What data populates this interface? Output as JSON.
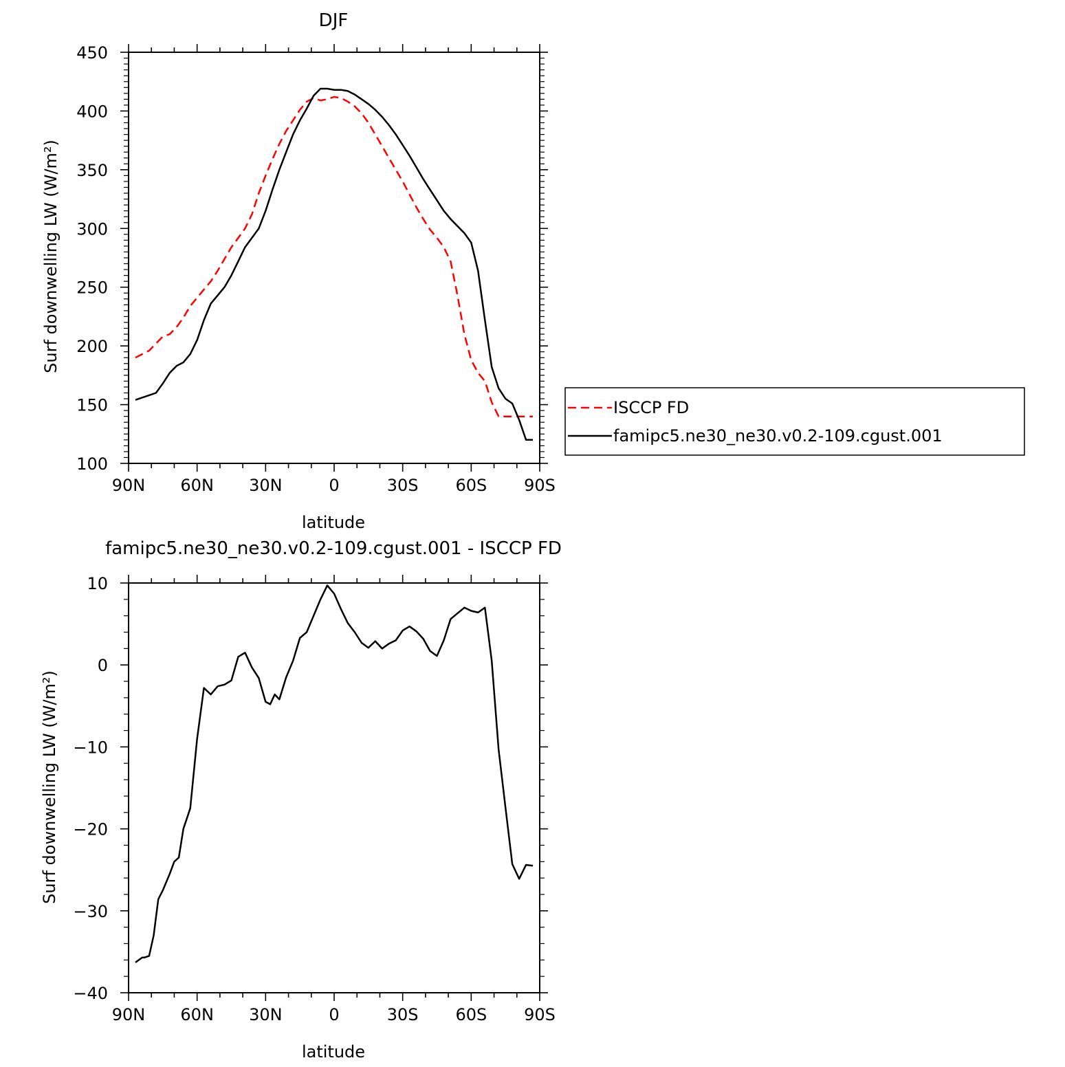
{
  "chart_data": [
    {
      "type": "line",
      "title": "DJF",
      "xlabel": "latitude",
      "ylabel": "Surf downwelling LW (W/m²)",
      "ylim": [
        100,
        450
      ],
      "yticks": [
        "100",
        "150",
        "200",
        "250",
        "300",
        "350",
        "400",
        "450"
      ],
      "xlim": [
        90,
        -90
      ],
      "xticks": [
        {
          "value": 90,
          "label": "90N"
        },
        {
          "value": 60,
          "label": "60N"
        },
        {
          "value": 30,
          "label": "30N"
        },
        {
          "value": 0,
          "label": "0"
        },
        {
          "value": -30,
          "label": "30S"
        },
        {
          "value": -60,
          "label": "60S"
        },
        {
          "value": -90,
          "label": "90S"
        }
      ],
      "legend_position": "right",
      "series": [
        {
          "name": "ISCCP FD",
          "color": "#ff0000",
          "dash": "dashed",
          "x": [
            87,
            84,
            81,
            78,
            75,
            72,
            69,
            66,
            63,
            60,
            57,
            54,
            51,
            48,
            45,
            42,
            39,
            36,
            33,
            30,
            27,
            24,
            21,
            18,
            15,
            12,
            9,
            6,
            3,
            0,
            -3,
            -6,
            -9,
            -12,
            -15,
            -18,
            -21,
            -24,
            -27,
            -30,
            -33,
            -36,
            -39,
            -42,
            -45,
            -48,
            -51,
            -54,
            -57,
            -60,
            -63,
            -66,
            -69,
            -72,
            -75,
            -78,
            -81,
            -84,
            -87
          ],
          "y": [
            190,
            193,
            196,
            202,
            208,
            210,
            216,
            224,
            234,
            241,
            248,
            255,
            264,
            274,
            284,
            292,
            300,
            312,
            330,
            345,
            359,
            372,
            383,
            392,
            401,
            408,
            411,
            409,
            410,
            412,
            411,
            408,
            404,
            398,
            390,
            380,
            370,
            360,
            350,
            340,
            329,
            318,
            308,
            299,
            292,
            284,
            272,
            243,
            210,
            188,
            177,
            170,
            152,
            140,
            140,
            140,
            140,
            140,
            140
          ]
        },
        {
          "name": "famipc5.ne30_ne30.v0.2-109.cgust.001",
          "color": "#000000",
          "dash": "solid",
          "x": [
            87,
            84,
            81,
            78,
            75,
            72,
            69,
            66,
            63,
            60,
            57,
            54,
            51,
            48,
            45,
            42,
            39,
            36,
            33,
            30,
            27,
            24,
            21,
            18,
            15,
            12,
            9,
            6,
            3,
            0,
            -3,
            -6,
            -9,
            -12,
            -15,
            -18,
            -21,
            -24,
            -27,
            -30,
            -33,
            -36,
            -39,
            -42,
            -45,
            -48,
            -51,
            -54,
            -57,
            -60,
            -63,
            -66,
            -69,
            -72,
            -75,
            -78,
            -81,
            -84,
            -87
          ],
          "y": [
            154,
            156,
            158,
            160,
            168,
            177,
            183,
            186,
            193,
            205,
            222,
            236,
            243,
            250,
            260,
            272,
            284,
            292,
            300,
            315,
            333,
            350,
            365,
            380,
            392,
            402,
            413,
            419,
            419,
            418,
            418,
            417,
            414,
            410,
            406,
            401,
            395,
            388,
            380,
            371,
            362,
            352,
            342,
            333,
            324,
            315,
            308,
            302,
            296,
            288,
            264,
            222,
            182,
            164,
            155,
            151,
            137,
            120,
            120
          ]
        }
      ]
    },
    {
      "type": "line",
      "title": "famipc5.ne30_ne30.v0.2-109.cgust.001 - ISCCP FD",
      "xlabel": "latitude",
      "ylabel": "Surf downwelling LW (W/m²)",
      "ylim": [
        -40,
        10
      ],
      "yticks": [
        "−40",
        "−30",
        "−20",
        "−10",
        "0",
        "10"
      ],
      "xlim": [
        90,
        -90
      ],
      "xticks": [
        {
          "value": 90,
          "label": "90N"
        },
        {
          "value": 60,
          "label": "60N"
        },
        {
          "value": 30,
          "label": "30N"
        },
        {
          "value": 0,
          "label": "0"
        },
        {
          "value": -30,
          "label": "30S"
        },
        {
          "value": -60,
          "label": "60S"
        },
        {
          "value": -90,
          "label": "90S"
        }
      ],
      "series": [
        {
          "color": "#000000",
          "x": [
            87,
            85,
            84,
            83,
            81,
            79,
            77,
            75,
            72,
            70,
            68,
            66,
            63,
            60,
            57,
            54,
            51,
            48,
            45,
            42,
            39,
            36,
            33,
            30,
            28,
            26,
            24,
            21,
            18,
            15,
            12,
            9,
            6,
            3,
            0,
            -3,
            -6,
            -9,
            -12,
            -15,
            -18,
            -21,
            -24,
            -27,
            -30,
            -33,
            -36,
            -39,
            -42,
            -45,
            -48,
            -51,
            -54,
            -57,
            -60,
            -63,
            -66,
            -69,
            -72,
            -75,
            -78,
            -81,
            -84,
            -87
          ],
          "y": [
            -36.3,
            -35.9,
            -35.7,
            -35.7,
            -35.5,
            -33.0,
            -28.6,
            -27.5,
            -25.5,
            -24.0,
            -23.5,
            -20.0,
            -17.5,
            -9.0,
            -2.8,
            -3.6,
            -2.6,
            -2.4,
            -1.9,
            1.0,
            1.5,
            -0.3,
            -1.6,
            -4.5,
            -4.8,
            -3.6,
            -4.2,
            -1.5,
            0.5,
            3.3,
            4.0,
            6.0,
            8.0,
            9.7,
            8.7,
            6.8,
            5.1,
            4.0,
            2.7,
            2.1,
            2.9,
            2.0,
            2.6,
            3.0,
            4.2,
            4.7,
            4.1,
            3.2,
            1.7,
            1.1,
            3.0,
            5.6,
            6.3,
            7.0,
            6.6,
            6.4,
            7.0,
            0.5,
            -10.3,
            -17.4,
            -24.3,
            -26.1,
            -24.4,
            -24.5
          ]
        }
      ]
    }
  ]
}
